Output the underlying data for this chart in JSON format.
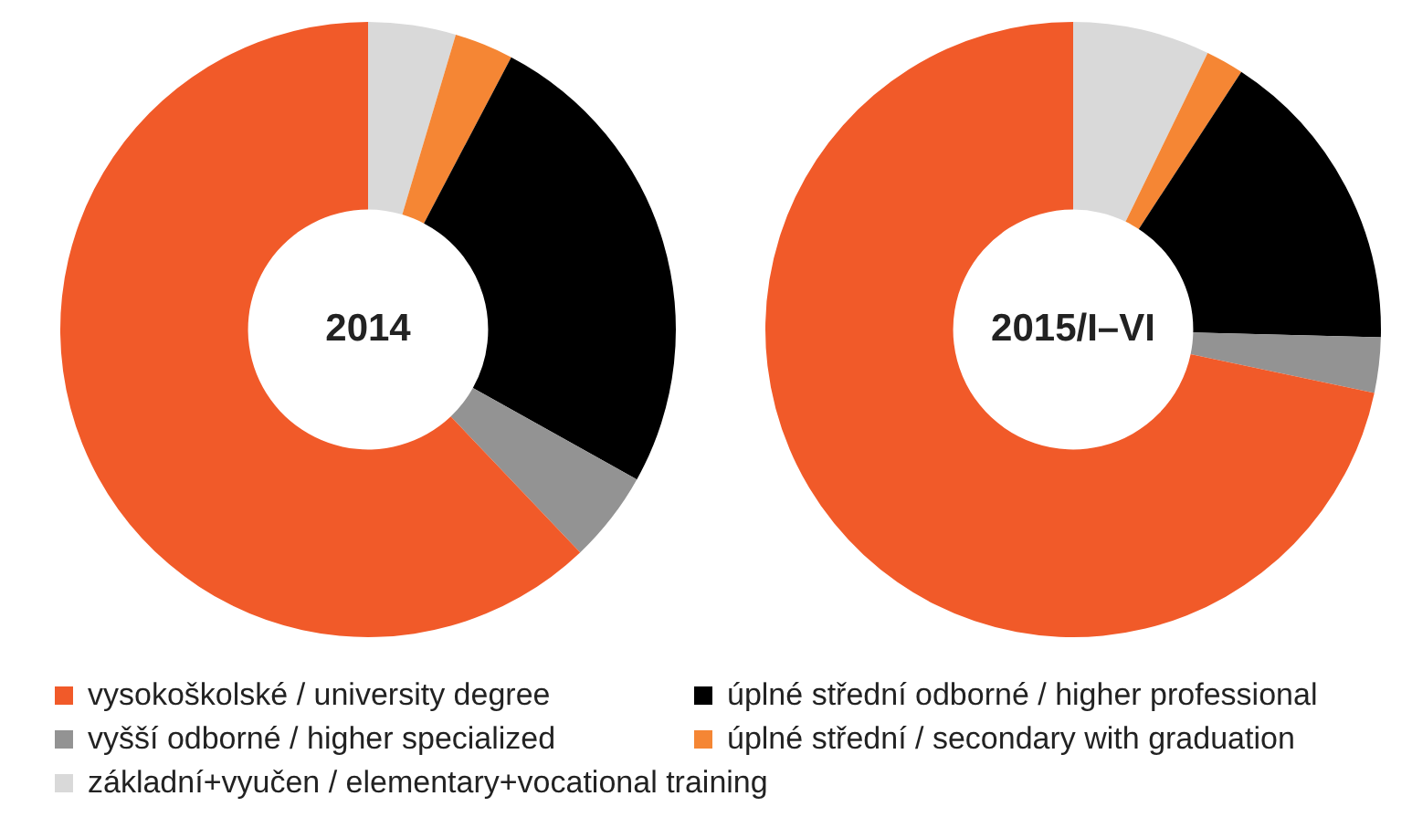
{
  "chart_data": [
    {
      "type": "donut",
      "title": "2014",
      "legend": "bottom",
      "categories": [
        "základní+vyučen / elementary+vocational training",
        "úplné střední / secondary with graduation",
        "úplné střední odborné / higher professional",
        "vyšší odborné / higher specialized",
        "vysokoškolské / university degree"
      ],
      "values": [
        4.6,
        3.1,
        25.4,
        4.8,
        62.1
      ],
      "colors": [
        "#d9d9d9",
        "#f58634",
        "#000000",
        "#939393",
        "#f15a29"
      ]
    },
    {
      "type": "donut",
      "title": "2015/I–VI",
      "categories": [
        null,
        null,
        null,
        null,
        null
      ],
      "values": [
        7.2,
        2.0,
        16.2,
        2.9,
        71.7
      ],
      "colors": [
        "#d9d9d9",
        "#f58634",
        "#000000",
        "#939393",
        "#f15a29"
      ]
    }
  ]
}
